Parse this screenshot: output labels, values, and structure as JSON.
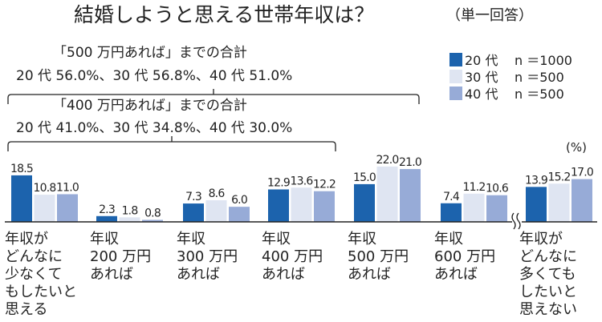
{
  "chart_data": {
    "type": "bar",
    "title": "結婚しようと思える世帯年収は？",
    "subtitle": "（単一回答）",
    "unit": "(%)",
    "categories": [
      [
        "年収が",
        "どんなに",
        "少なくて",
        "もしたいと",
        "思える"
      ],
      [
        "年収",
        "200 万円",
        "あれば"
      ],
      [
        "年収",
        "300 万円",
        "あれば"
      ],
      [
        "年収",
        "400 万円",
        "あれば"
      ],
      [
        "年収",
        "500 万円",
        "あれば"
      ],
      [
        "年収",
        "600 万円",
        "あれば"
      ],
      [
        "年収が",
        "どんなに",
        "多くても",
        "したいと",
        "思えない"
      ]
    ],
    "series": [
      {
        "name": "20 代",
        "n": "n ＝1000",
        "color": "#1c63ad",
        "values": [
          18.5,
          2.3,
          7.3,
          12.9,
          15.0,
          7.4,
          13.9
        ]
      },
      {
        "name": "30 代",
        "n": "n ＝500",
        "color": "#dfe5f2",
        "values": [
          10.8,
          1.8,
          8.6,
          13.6,
          22.0,
          11.2,
          15.2
        ]
      },
      {
        "name": "40 代",
        "n": "n ＝500",
        "color": "#97abd7",
        "values": [
          11.0,
          0.8,
          6.0,
          12.2,
          21.0,
          10.6,
          17.0
        ]
      }
    ],
    "ylim": [
      0,
      24
    ],
    "axis_break_before_last": true,
    "legend": "top-right",
    "grid": false,
    "annotations": [
      {
        "title": "「500 万円あれば」までの合計",
        "text": "20 代 56.0%、30 代 56.8%、40 代 51.0%",
        "spans_categories": [
          0,
          4
        ]
      },
      {
        "title": "「400 万円あれば」までの合計",
        "text": "20 代 41.0%、30 代 34.8%、40 代 30.0%",
        "spans_categories": [
          0,
          3
        ]
      }
    ]
  }
}
